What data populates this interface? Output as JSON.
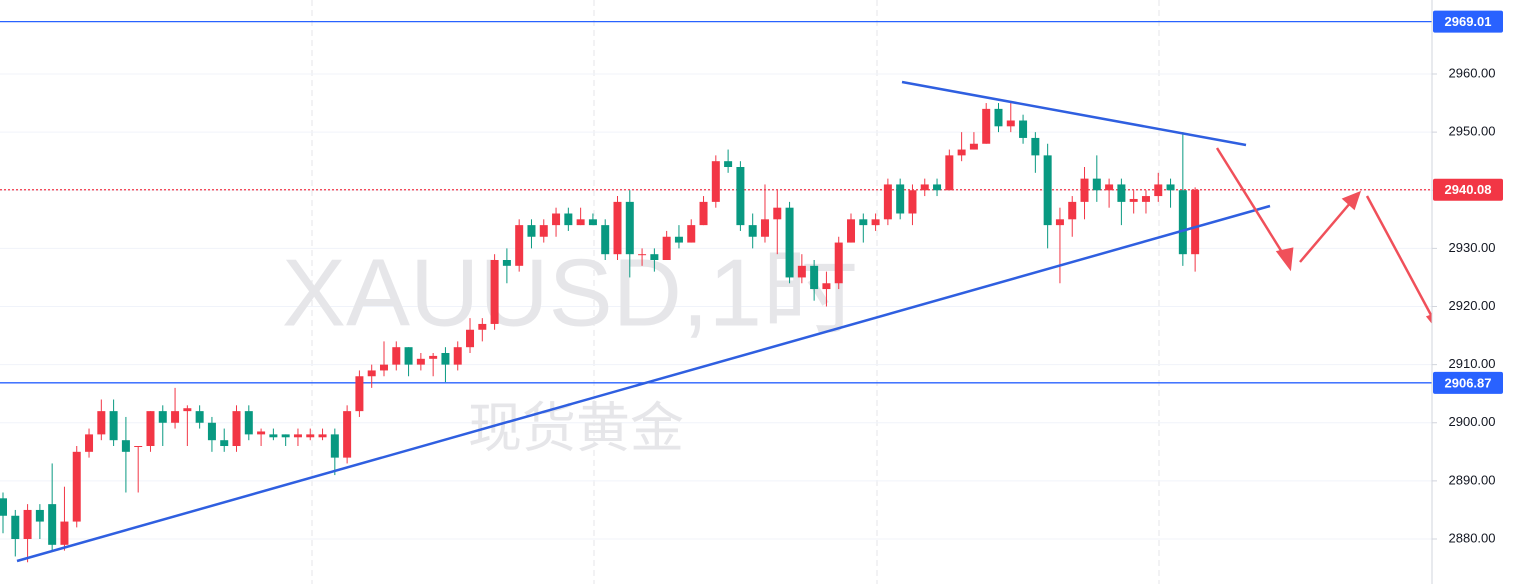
{
  "chart_data": {
    "type": "candlestick",
    "watermark": "XAUUSD,1时",
    "watermark_subtitle": "现货黄金",
    "up_color": "#f23645",
    "down_color": "#089981",
    "open": [
      2887,
      2884,
      2880,
      2885,
      2886,
      2879,
      2883,
      2895,
      2898,
      2902,
      2897,
      2896,
      2896,
      2902,
      2900,
      2902,
      2902,
      2900,
      2897,
      2896,
      2902,
      2898,
      2898,
      2898,
      2897.5,
      2897.5,
      2897.5,
      2898,
      2894,
      2902,
      2908,
      2909,
      2910,
      2913,
      2910,
      2911,
      2912,
      2910,
      2913,
      2916,
      2917,
      2928,
      2927,
      2934,
      2932,
      2934,
      2936,
      2934,
      2935,
      2934,
      2929,
      2938,
      2929,
      2929,
      2928,
      2932,
      2931,
      2934,
      2938,
      2945,
      2944,
      2934,
      2932,
      2935,
      2937,
      2925,
      2927,
      2923,
      2924,
      2931,
      2935,
      2934,
      2935,
      2941,
      2936,
      2940,
      2941,
      2940,
      2946,
      2947,
      2948,
      2954,
      2951,
      2952,
      2949,
      2946,
      2934,
      2935,
      2938,
      2942,
      2940,
      2941,
      2938,
      2938,
      2939,
      2941,
      2940,
      2929
    ],
    "high": [
      2888,
      2885,
      2886,
      2886,
      2893,
      2889,
      2896,
      2899,
      2904,
      2904,
      2901,
      2896,
      2902,
      2903,
      2906,
      2903,
      2903,
      2901,
      2899,
      2903,
      2903,
      2899,
      2899,
      2898,
      2899,
      2899,
      2899,
      2899,
      2903,
      2909,
      2910,
      2914,
      2914,
      2913,
      2912,
      2912,
      2913,
      2914,
      2918,
      2918,
      2929,
      2930,
      2935,
      2935,
      2935,
      2937,
      2937,
      2937,
      2936,
      2935,
      2939,
      2940,
      2930,
      2930,
      2933,
      2934,
      2935,
      2939,
      2946,
      2947,
      2945,
      2936,
      2941,
      2940,
      2938,
      2929,
      2928,
      2926,
      2932,
      2936,
      2936,
      2936,
      2942,
      2942,
      2941,
      2942,
      2942,
      2947,
      2950,
      2950,
      2955,
      2955,
      2955,
      2953,
      2950,
      2948,
      2937,
      2939,
      2944,
      2946,
      2942,
      2942,
      2940,
      2940,
      2943,
      2942,
      2950,
      2940.5
    ],
    "low": [
      2881,
      2877,
      2876,
      2880,
      2878,
      2878,
      2882,
      2894,
      2897,
      2896,
      2888,
      2888,
      2895,
      2896,
      2899,
      2896,
      2899,
      2895,
      2895,
      2895,
      2897,
      2896,
      2897,
      2896,
      2896,
      2897,
      2897,
      2891,
      2893,
      2901,
      2906,
      2908,
      2909,
      2908,
      2909,
      2908,
      2907,
      2909,
      2912,
      2914,
      2916,
      2924,
      2926,
      2930,
      2931,
      2932,
      2933,
      2934,
      2934,
      2928,
      2928,
      2925,
      2927,
      2926,
      2928,
      2930,
      2931,
      2934,
      2937,
      2943,
      2933,
      2930,
      2931,
      2929,
      2924,
      2924,
      2921,
      2920,
      2923,
      2931,
      2931,
      2933,
      2934,
      2935,
      2934,
      2939,
      2939,
      2940,
      2945,
      2947,
      2948,
      2950,
      2950,
      2948,
      2943,
      2930,
      2924,
      2932,
      2935,
      2938,
      2937,
      2934,
      2936,
      2936,
      2938,
      2937,
      2927,
      2926
    ],
    "close": [
      2884,
      2880,
      2885,
      2883,
      2879,
      2883,
      2895,
      2898,
      2902,
      2897,
      2895,
      2896,
      2902,
      2900,
      2902,
      2902.5,
      2900,
      2897,
      2896,
      2902,
      2898,
      2898.5,
      2897.5,
      2897.5,
      2898,
      2898,
      2898,
      2894,
      2902,
      2908,
      2909,
      2910,
      2913,
      2910,
      2911,
      2911.5,
      2910,
      2913,
      2916,
      2917,
      2928,
      2927,
      2934,
      2932,
      2934,
      2936,
      2934,
      2935,
      2934,
      2929,
      2938,
      2929,
      2929,
      2928,
      2932,
      2931,
      2934,
      2938,
      2945,
      2944,
      2934,
      2932,
      2935,
      2937,
      2925,
      2927,
      2923,
      2924,
      2931,
      2935,
      2934,
      2935,
      2941,
      2936,
      2940,
      2941,
      2940,
      2946,
      2947,
      2948,
      2954,
      2951,
      2952,
      2949,
      2946,
      2934,
      2935,
      2938,
      2942,
      2940,
      2941,
      2938,
      2938.5,
      2939,
      2941,
      2940,
      2929,
      2940.08
    ],
    "ylim": [
      2872.26,
      2972.73
    ],
    "yticks": [
      {
        "value": 2880,
        "label": "2880.00"
      },
      {
        "value": 2890,
        "label": "2890.00"
      },
      {
        "value": 2900,
        "label": "2900.00"
      },
      {
        "value": 2910,
        "label": "2910.00"
      },
      {
        "value": 2920,
        "label": "2920.00"
      },
      {
        "value": 2930,
        "label": "2930.00"
      },
      {
        "value": 2940,
        "label": "2940.00"
      },
      {
        "value": 2950,
        "label": "2950.00"
      },
      {
        "value": 2960,
        "label": "2960.00"
      }
    ],
    "price_lines": [
      {
        "value": 2969.01,
        "color": "#2962ff",
        "style": "solid"
      },
      {
        "value": 2906.87,
        "color": "#2962ff",
        "style": "solid"
      },
      {
        "value": 2940.08,
        "color": "#f23645",
        "style": "dotted"
      }
    ],
    "grid": true
  }
}
